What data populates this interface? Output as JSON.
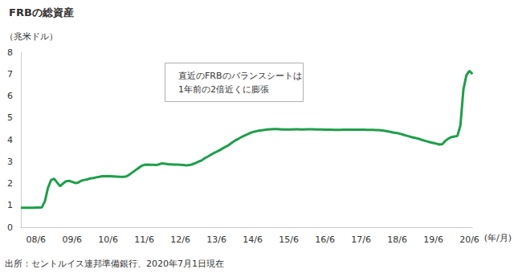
{
  "chart_data": {
    "type": "line",
    "title": "FRBの総資産",
    "y_label": "（兆米ドル）",
    "x_label": "(年/月)",
    "annotation": [
      "直近のFRBのバランスシートは",
      "1年前の2倍近くに膨張"
    ],
    "source": "出所：セントルイス連邦準備銀行、2020年7月1日現在",
    "color": "#1e9e4a",
    "grid": false,
    "ylim": [
      0,
      8
    ],
    "yticks": [
      0,
      1,
      2,
      3,
      4,
      5,
      6,
      7,
      8
    ],
    "categories": [
      null,
      null,
      null,
      null,
      null,
      "08/6",
      null,
      null,
      null,
      null,
      null,
      null,
      null,
      null,
      null,
      null,
      null,
      "09/6",
      null,
      null,
      null,
      null,
      null,
      null,
      null,
      null,
      null,
      null,
      null,
      "10/6",
      null,
      null,
      null,
      null,
      null,
      null,
      null,
      null,
      null,
      null,
      null,
      "11/6",
      null,
      null,
      null,
      null,
      null,
      null,
      null,
      null,
      null,
      null,
      null,
      "12/6",
      null,
      null,
      null,
      null,
      null,
      null,
      null,
      null,
      null,
      null,
      null,
      "13/6",
      null,
      null,
      null,
      null,
      null,
      null,
      null,
      null,
      null,
      null,
      null,
      "14/6",
      null,
      null,
      null,
      null,
      null,
      null,
      null,
      null,
      null,
      null,
      null,
      "15/6",
      null,
      null,
      null,
      null,
      null,
      null,
      null,
      null,
      null,
      null,
      null,
      "16/6",
      null,
      null,
      null,
      null,
      null,
      null,
      null,
      null,
      null,
      null,
      null,
      "17/6",
      null,
      null,
      null,
      null,
      null,
      null,
      null,
      null,
      null,
      null,
      null,
      "18/6",
      null,
      null,
      null,
      null,
      null,
      null,
      null,
      null,
      null,
      null,
      null,
      "19/6",
      null,
      null,
      null,
      null,
      null,
      null,
      null,
      null,
      null,
      null,
      null,
      "20/6",
      null
    ],
    "values": [
      0.89,
      0.89,
      0.89,
      0.89,
      0.89,
      0.9,
      0.9,
      0.91,
      1.2,
      1.8,
      2.15,
      2.22,
      2.05,
      1.88,
      2.0,
      2.1,
      2.12,
      2.08,
      2.02,
      2.04,
      2.12,
      2.16,
      2.18,
      2.23,
      2.25,
      2.28,
      2.3,
      2.33,
      2.33,
      2.34,
      2.33,
      2.32,
      2.31,
      2.3,
      2.3,
      2.32,
      2.4,
      2.5,
      2.6,
      2.7,
      2.8,
      2.85,
      2.86,
      2.85,
      2.85,
      2.84,
      2.88,
      2.92,
      2.9,
      2.88,
      2.87,
      2.86,
      2.86,
      2.85,
      2.84,
      2.83,
      2.84,
      2.88,
      2.93,
      3.0,
      3.05,
      3.15,
      3.22,
      3.3,
      3.38,
      3.45,
      3.52,
      3.6,
      3.68,
      3.75,
      3.85,
      3.95,
      4.02,
      4.1,
      4.17,
      4.23,
      4.3,
      4.35,
      4.38,
      4.41,
      4.43,
      4.45,
      4.47,
      4.48,
      4.49,
      4.49,
      4.48,
      4.47,
      4.47,
      4.47,
      4.47,
      4.48,
      4.48,
      4.47,
      4.47,
      4.48,
      4.48,
      4.48,
      4.47,
      4.47,
      4.47,
      4.46,
      4.46,
      4.46,
      4.45,
      4.45,
      4.45,
      4.46,
      4.46,
      4.46,
      4.46,
      4.46,
      4.46,
      4.46,
      4.46,
      4.45,
      4.45,
      4.45,
      4.44,
      4.44,
      4.42,
      4.4,
      4.38,
      4.35,
      4.32,
      4.3,
      4.27,
      4.23,
      4.19,
      4.15,
      4.11,
      4.08,
      4.05,
      4.0,
      3.96,
      3.92,
      3.88,
      3.85,
      3.82,
      3.78,
      3.8,
      3.95,
      4.05,
      4.12,
      4.15,
      4.17,
      4.65,
      6.3,
      6.95,
      7.15,
      7.0
    ]
  }
}
